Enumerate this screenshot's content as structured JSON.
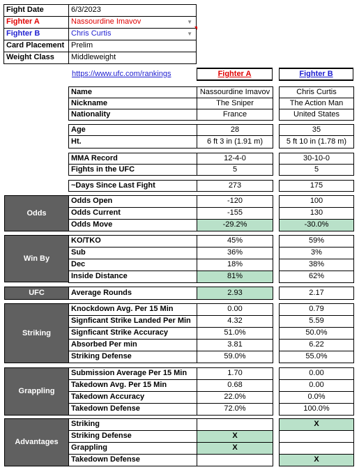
{
  "info": {
    "fight_date": {
      "label": "Fight Date",
      "value": "6/3/2023"
    },
    "fighter_a": {
      "label": "Fighter A",
      "value": "Nassourdine Imavov"
    },
    "fighter_b": {
      "label": "Fighter B",
      "value": "Chris Curtis"
    },
    "card_placement": {
      "label": "Card Placement",
      "value": "Prelim"
    },
    "weight_class": {
      "label": "Weight Class",
      "value": "Middleweight"
    }
  },
  "link": "https://www.ufc.com/rankings",
  "headers": {
    "a": "Fighter A",
    "b": "Fighter B"
  },
  "profile": [
    {
      "label": "Name",
      "a": "Nassourdine Imavov",
      "b": "Chris Curtis"
    },
    {
      "label": "Nickname",
      "a": "The Sniper",
      "b": "The Action Man"
    },
    {
      "label": "Nationality",
      "a": "France",
      "b": "United States"
    }
  ],
  "physical": [
    {
      "label": "Age",
      "a": "28",
      "b": "35"
    },
    {
      "label": "Ht.",
      "a": "6 ft 3 in (1.91 m)",
      "b": "5 ft 10 in (1.78 m)"
    }
  ],
  "record": [
    {
      "label": "MMA Record",
      "a": "12-4-0",
      "b": "30-10-0"
    },
    {
      "label": "Fights in the UFC",
      "a": "5",
      "b": "5"
    }
  ],
  "days": {
    "label": "~Days Since Last Fight",
    "a": "273",
    "b": "175"
  },
  "odds": {
    "section": "Odds",
    "rows": [
      {
        "label": "Odds Open",
        "a": "-120",
        "b": "100"
      },
      {
        "label": "Odds Current",
        "a": "-155",
        "b": "130"
      },
      {
        "label": "Odds Move",
        "a": "-29.2%",
        "b": "-30.0%"
      }
    ]
  },
  "winby": {
    "section": "Win By",
    "rows": [
      {
        "label": "KO/TKO",
        "a": "45%",
        "b": "59%"
      },
      {
        "label": "Sub",
        "a": "36%",
        "b": "3%"
      },
      {
        "label": "Dec",
        "a": "18%",
        "b": "38%"
      },
      {
        "label": "Inside Distance",
        "a": "81%",
        "b": "62%"
      }
    ]
  },
  "ufc": {
    "section": "UFC",
    "label": "Average Rounds",
    "a": "2.93",
    "b": "2.17"
  },
  "striking": {
    "section": "Striking",
    "rows": [
      {
        "label": "Knockdown Avg. Per 15 Min",
        "a": "0.00",
        "b": "0.79"
      },
      {
        "label": "Signficant Strike Landed Per Min",
        "a": "4.32",
        "b": "5.59"
      },
      {
        "label": "Signficant Strike Accuracy",
        "a": "51.0%",
        "b": "50.0%"
      },
      {
        "label": "Absorbed Per min",
        "a": "3.81",
        "b": "6.22"
      },
      {
        "label": "Striking Defense",
        "a": "59.0%",
        "b": "55.0%"
      }
    ]
  },
  "grappling": {
    "section": "Grappling",
    "rows": [
      {
        "label": "Submission Average  Per 15 Min",
        "a": "1.70",
        "b": "0.00"
      },
      {
        "label": "Takedown Avg. Per 15 Min",
        "a": "0.68",
        "b": "0.00"
      },
      {
        "label": "Takedown Accuracy",
        "a": "22.0%",
        "b": "0.0%"
      },
      {
        "label": "Takedown Defense",
        "a": "72.0%",
        "b": "100.0%"
      }
    ]
  },
  "advantages": {
    "section": "Advantages",
    "rows": [
      {
        "label": "Striking",
        "a": "",
        "b": "X"
      },
      {
        "label": "Striking Defense",
        "a": "X",
        "b": ""
      },
      {
        "label": "Grappling",
        "a": "X",
        "b": ""
      },
      {
        "label": "Takedown Defense",
        "a": "",
        "b": "X"
      }
    ]
  },
  "colors": {
    "highlight": "#b9e1c9",
    "section_bg": "#606060",
    "fighter_a": "#e00000",
    "fighter_b": "#1f1fd0"
  }
}
